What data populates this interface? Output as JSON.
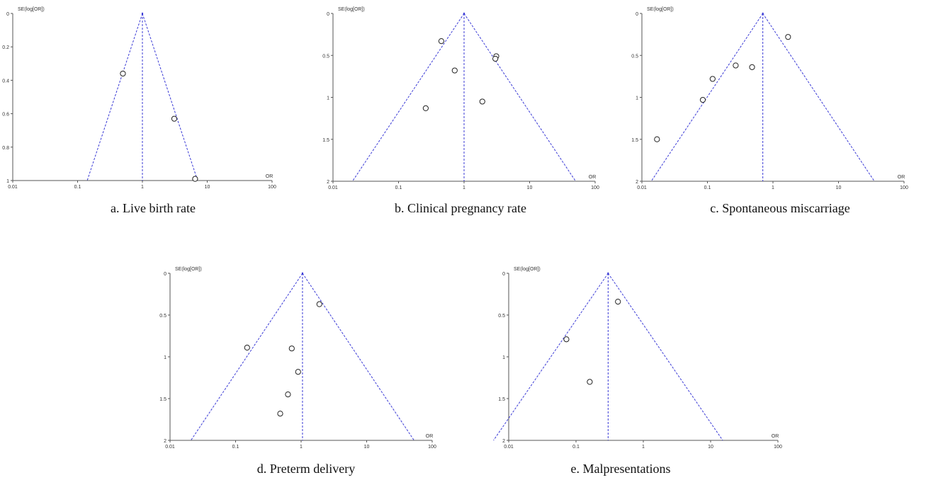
{
  "chart_data": [
    {
      "type": "scatter",
      "subtype": "funnel-plot",
      "caption": "a. Live birth rate",
      "xlabel": "OR",
      "ylabel": "SE(log[OR])",
      "xscale": "log",
      "xlim": [
        0.01,
        100
      ],
      "xticks": [
        "0.01",
        "0.1",
        "1",
        "10",
        "100"
      ],
      "ylim": [
        0,
        1
      ],
      "yinverted": true,
      "yticks": [
        "0",
        "0.2",
        "0.4",
        "0.6",
        "0.8",
        "1"
      ],
      "pooled_or": 1.0,
      "points": [
        {
          "or": 0.5,
          "se": 0.36
        },
        {
          "or": 3.1,
          "se": 0.63
        },
        {
          "or": 6.5,
          "se": 0.99
        }
      ]
    },
    {
      "type": "scatter",
      "subtype": "funnel-plot",
      "caption": "b. Clinical pregnancy rate",
      "xlabel": "OR",
      "ylabel": "SE(log[OR])",
      "xscale": "log",
      "xlim": [
        0.01,
        100
      ],
      "xticks": [
        "0.01",
        "0.1",
        "1",
        "10",
        "100"
      ],
      "ylim": [
        0,
        2
      ],
      "yinverted": true,
      "yticks": [
        "0",
        "0.5",
        "1",
        "1.5",
        "2"
      ],
      "pooled_or": 1.0,
      "points": [
        {
          "or": 0.45,
          "se": 0.33
        },
        {
          "or": 0.72,
          "se": 0.68
        },
        {
          "or": 3.1,
          "se": 0.51
        },
        {
          "or": 3.0,
          "se": 0.54
        },
        {
          "or": 0.26,
          "se": 1.13
        },
        {
          "or": 1.9,
          "se": 1.05
        }
      ]
    },
    {
      "type": "scatter",
      "subtype": "funnel-plot",
      "caption": "c. Spontaneous miscarriage",
      "xlabel": "OR",
      "ylabel": "SE(log[OR])",
      "xscale": "log",
      "xlim": [
        0.01,
        100
      ],
      "xticks": [
        "0.01",
        "0.1",
        "1",
        "10",
        "100"
      ],
      "ylim": [
        0,
        2
      ],
      "yinverted": true,
      "yticks": [
        "0",
        "0.5",
        "1",
        "1.5",
        "2"
      ],
      "pooled_or": 0.7,
      "points": [
        {
          "or": 1.7,
          "se": 0.28
        },
        {
          "or": 0.27,
          "se": 0.62
        },
        {
          "or": 0.48,
          "se": 0.64
        },
        {
          "or": 0.12,
          "se": 0.78
        },
        {
          "or": 0.085,
          "se": 1.03
        },
        {
          "or": 0.017,
          "se": 1.5
        }
      ]
    },
    {
      "type": "scatter",
      "subtype": "funnel-plot",
      "caption": "d. Preterm delivery",
      "xlabel": "OR",
      "ylabel": "SE(log[OR])",
      "xscale": "log",
      "xlim": [
        0.01,
        100
      ],
      "xticks": [
        "0.01",
        "0.1",
        "1",
        "10",
        "100"
      ],
      "ylim": [
        0,
        2
      ],
      "yinverted": true,
      "yticks": [
        "0",
        "0.5",
        "1",
        "1.5",
        "2"
      ],
      "pooled_or": 1.05,
      "points": [
        {
          "or": 1.9,
          "se": 0.37
        },
        {
          "or": 0.15,
          "se": 0.89
        },
        {
          "or": 0.72,
          "se": 0.9
        },
        {
          "or": 0.9,
          "se": 1.18
        },
        {
          "or": 0.63,
          "se": 1.45
        },
        {
          "or": 0.48,
          "se": 1.68
        }
      ]
    },
    {
      "type": "scatter",
      "subtype": "funnel-plot",
      "caption": "e. Malpresentations",
      "xlabel": "OR",
      "ylabel": "SE(log[OR])",
      "xscale": "log",
      "xlim": [
        0.01,
        100
      ],
      "xticks": [
        "0.01",
        "0.1",
        "1",
        "10",
        "100"
      ],
      "ylim": [
        0,
        2
      ],
      "yinverted": true,
      "yticks": [
        "0",
        "0.5",
        "1",
        "1.5",
        "2"
      ],
      "pooled_or": 0.3,
      "points": [
        {
          "or": 0.42,
          "se": 0.34
        },
        {
          "or": 0.072,
          "se": 0.79
        },
        {
          "or": 0.16,
          "se": 1.3
        }
      ]
    }
  ],
  "colors": {
    "funnel": "#3b3bd6",
    "axis": "#555555",
    "marker_stroke": "#222222"
  }
}
